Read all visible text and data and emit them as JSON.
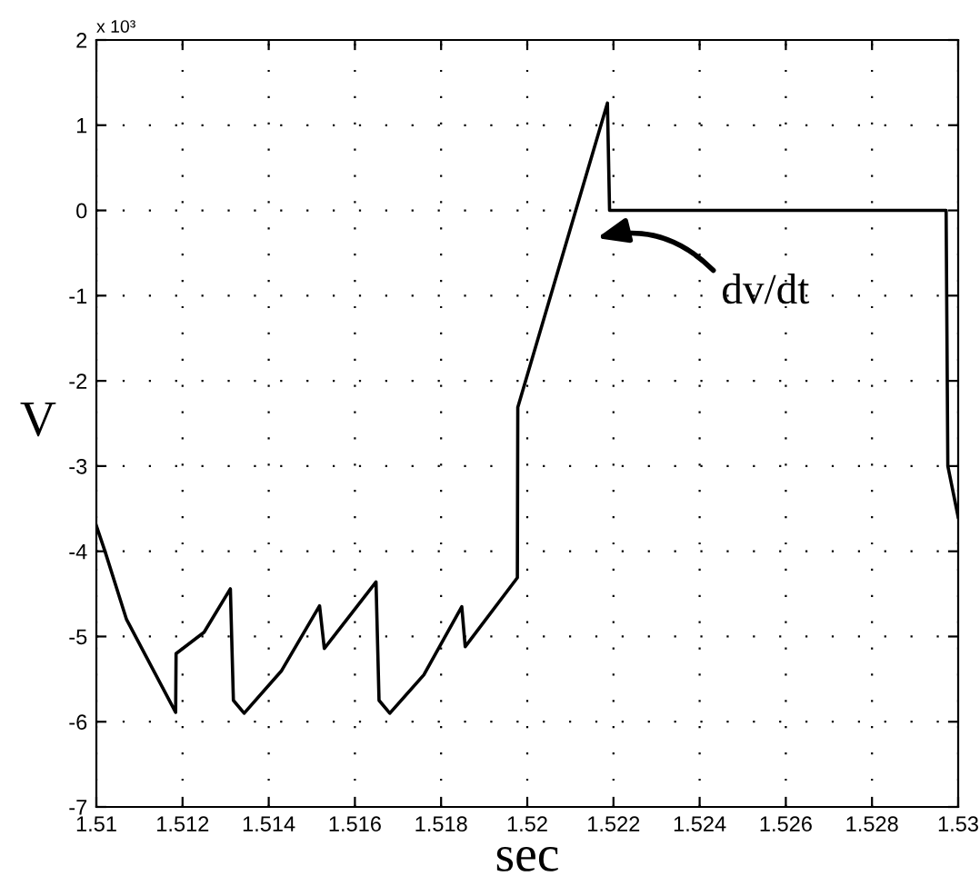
{
  "chart_data": {
    "type": "line",
    "xlabel": "sec",
    "ylabel": "V",
    "x": [
      1.51,
      1.5102,
      1.5107,
      1.51184,
      1.51185,
      1.5125,
      1.51311,
      1.51318,
      1.51343,
      1.5143,
      1.51518,
      1.51529,
      1.51649,
      1.51656,
      1.51681,
      1.5176,
      1.51848,
      1.51856,
      1.51977,
      1.51978,
      1.52186,
      1.52191,
      1.52972,
      1.52976,
      1.53
    ],
    "series": [
      {
        "color": "#000000",
        "values": [
          -3.7,
          -4.0,
          -4.8,
          -5.89,
          -5.2,
          -4.95,
          -4.44,
          -5.75,
          -5.9,
          -5.4,
          -4.64,
          -5.14,
          -4.36,
          -5.75,
          -5.9,
          -5.45,
          -4.65,
          -5.12,
          -4.31,
          -2.31,
          1.26,
          0.0,
          0.0,
          -3.0,
          -3.6
        ]
      }
    ],
    "xlim": [
      1.51,
      1.53
    ],
    "xticks": [
      1.51,
      1.512,
      1.514,
      1.516,
      1.518,
      1.52,
      1.522,
      1.524,
      1.526,
      1.528,
      1.53
    ],
    "ylim": [
      -7,
      2
    ],
    "yticks": [
      -7,
      -6,
      -5,
      -4,
      -3,
      -2,
      -1,
      0,
      1,
      2
    ],
    "annotations": [
      "x 10³",
      "dv/dt"
    ],
    "grid": true,
    "line_style": "solid",
    "marker": "none"
  }
}
